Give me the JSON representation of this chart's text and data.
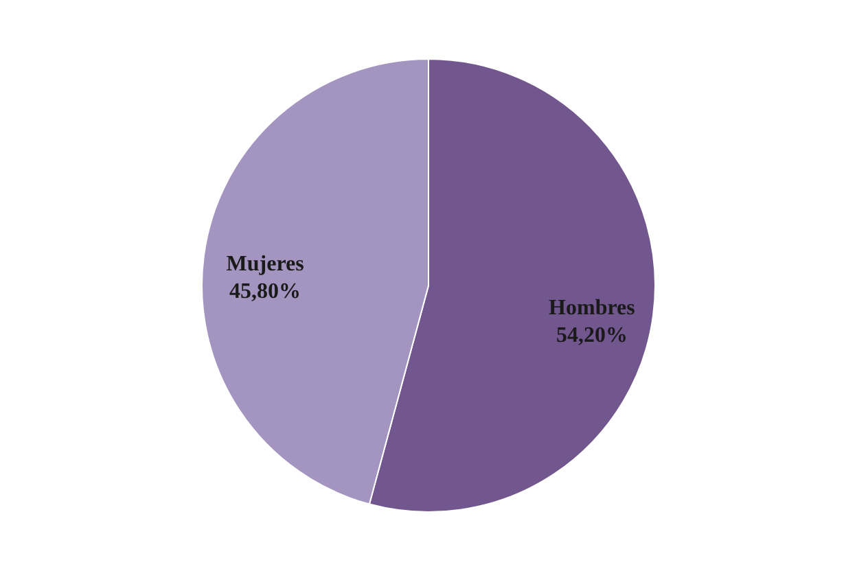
{
  "chart_data": {
    "type": "pie",
    "categories": [
      "Hombres",
      "Mujeres"
    ],
    "values": [
      54.2,
      45.8
    ],
    "colors": [
      "#72578f",
      "#a395c0"
    ],
    "value_labels": [
      "54,20%",
      "45,80%"
    ]
  }
}
